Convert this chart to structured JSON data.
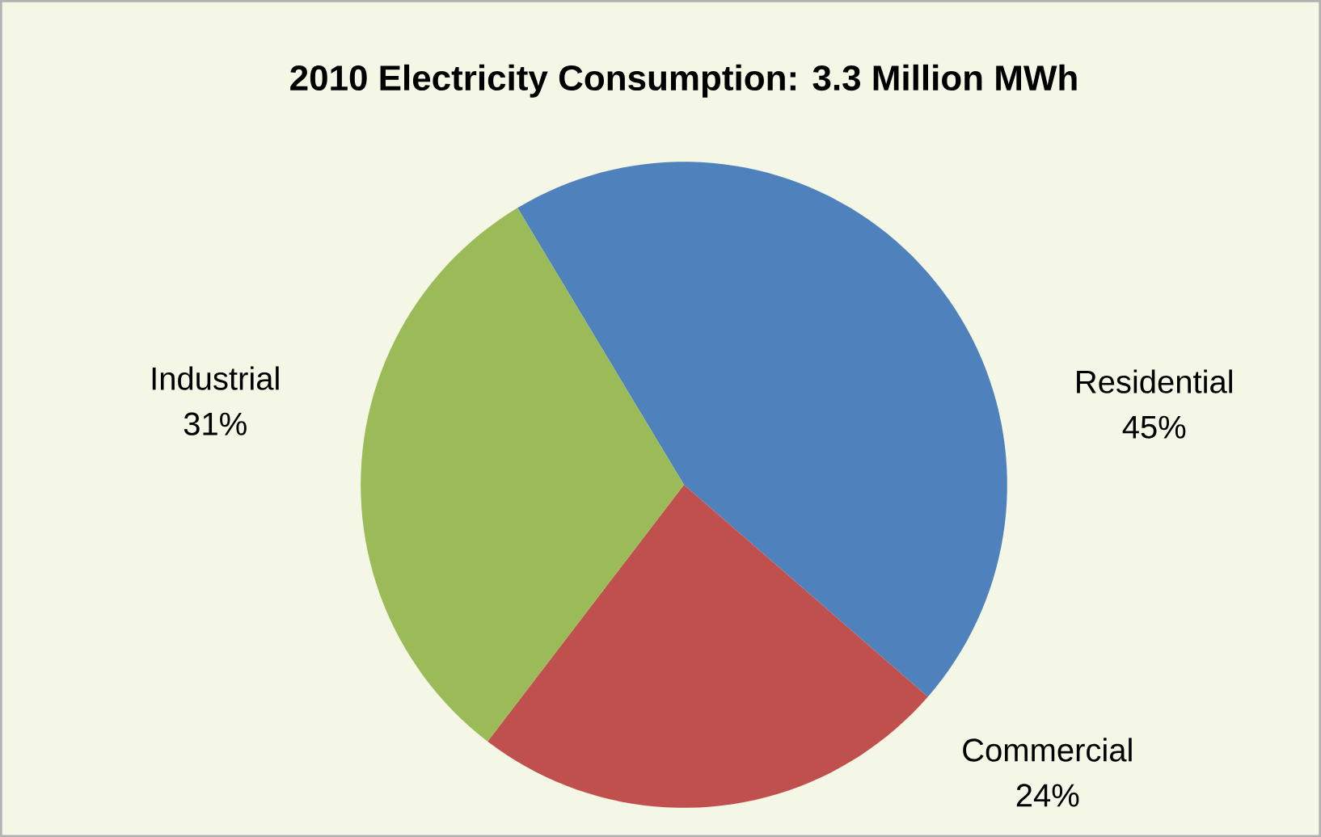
{
  "chart_data": {
    "type": "pie",
    "title": "2010 Electricity Consumption: 3.3 Million MWh",
    "categories": [
      "Residential",
      "Commercial",
      "Industrial"
    ],
    "values": [
      45,
      24,
      31
    ],
    "value_labels": [
      "45%",
      "24%",
      "31%"
    ],
    "colors": [
      "#4f81bd",
      "#c0504d",
      "#9bbb59"
    ]
  }
}
